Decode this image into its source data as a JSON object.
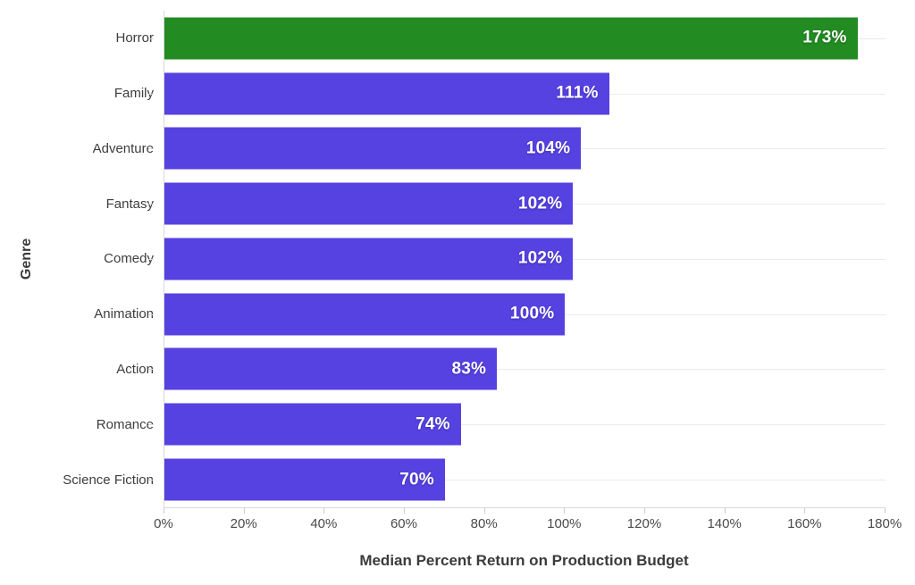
{
  "chart_data": {
    "type": "bar",
    "orientation": "horizontal",
    "title": "",
    "xlabel": "Median Percent Return on Production Budget",
    "ylabel": "Genre",
    "categories": [
      "Horror",
      "Family",
      "Adventure",
      "Fantasy",
      "Comedy",
      "Animation",
      "Action",
      "Romance",
      "Science Fiction"
    ],
    "values": [
      173,
      111,
      104,
      102,
      102,
      100,
      83,
      74,
      70
    ],
    "bar_labels": [
      "173%",
      "111%",
      "104%",
      "102%",
      "102%",
      "100%",
      "83%",
      "74%",
      "70%"
    ],
    "bar_colors": [
      "#228B22",
      "#5641E1",
      "#5641E1",
      "#5641E1",
      "#5641E1",
      "#5641E1",
      "#5641E1",
      "#5641E1",
      "#5641E1"
    ],
    "highlight": {
      "category": "Horror",
      "color": "#228B22"
    },
    "default_bar_color": "#5641E1",
    "xlim": [
      0,
      180
    ],
    "xtick_values": [
      0,
      20,
      40,
      60,
      80,
      100,
      120,
      140,
      160,
      180
    ],
    "xtick_labels": [
      "0%",
      "20%",
      "40%",
      "60%",
      "80%",
      "100%",
      "120%",
      "140%",
      "160%",
      "180%"
    ],
    "grid": "horizontal gridline per category",
    "legend_position": "none"
  },
  "colors": {
    "background": "#ffffff",
    "axis_line": "#d9d9d9",
    "grid_line": "#ebebeb",
    "category_text": "#3d3d3d",
    "tick_text": "#4a4a4a",
    "axis_title_text": "#3b3b3b",
    "bar_value_text": "#ffffff"
  }
}
